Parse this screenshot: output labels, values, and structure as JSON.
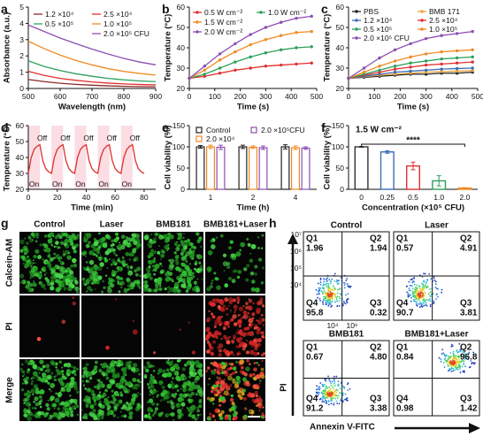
{
  "chart_data": [
    {
      "type": "line",
      "label": "a",
      "xlabel": "Wavelength (nm)",
      "ylabel": "Absorbance (a.u.)",
      "x": [
        500,
        550,
        600,
        650,
        700,
        750,
        800,
        850,
        900
      ],
      "xlim": [
        500,
        900
      ],
      "xticks": [
        500,
        600,
        700,
        800,
        900
      ],
      "ylim": [
        0,
        5
      ],
      "yticks": [
        0,
        1,
        2,
        3,
        4,
        5
      ],
      "markers": false,
      "series": [
        {
          "name": "1.2 ×10⁴",
          "color": "#8b2a2a",
          "values": [
            0.55,
            0.42,
            0.32,
            0.25,
            0.2,
            0.16,
            0.13,
            0.11,
            0.1
          ]
        },
        {
          "name": "2.5 ×10⁴",
          "color": "#e03030",
          "values": [
            1.05,
            0.8,
            0.62,
            0.5,
            0.4,
            0.33,
            0.28,
            0.24,
            0.22
          ]
        },
        {
          "name": "0.5 ×10⁵",
          "color": "#2ca05a",
          "values": [
            1.7,
            1.35,
            1.1,
            0.9,
            0.75,
            0.62,
            0.53,
            0.46,
            0.42
          ]
        },
        {
          "name": "1.0 ×10⁵",
          "color": "#f08a24",
          "values": [
            2.9,
            2.45,
            2.05,
            1.72,
            1.45,
            1.22,
            1.05,
            0.92,
            0.82
          ]
        },
        {
          "name": "2.0 ×10⁵ CFU",
          "color": "#8c4fb3",
          "values": [
            3.9,
            3.5,
            3.1,
            2.75,
            2.42,
            2.12,
            1.85,
            1.62,
            1.45
          ]
        }
      ]
    },
    {
      "type": "line",
      "label": "b",
      "xlabel": "Time (s)",
      "ylabel": "Temperature (°C)",
      "x": [
        0,
        60,
        120,
        180,
        240,
        300,
        360,
        420,
        480
      ],
      "xlim": [
        0,
        500
      ],
      "xticks": [
        0,
        100,
        200,
        300,
        400,
        500
      ],
      "ylim": [
        20,
        60
      ],
      "yticks": [
        20,
        30,
        40,
        50,
        60
      ],
      "markers": true,
      "series": [
        {
          "name": "0.5 W cm⁻²",
          "color": "#e03030",
          "values": [
            25,
            26,
            27.5,
            29,
            30,
            31,
            31.5,
            32,
            32.5
          ]
        },
        {
          "name": "1.0 W cm⁻²",
          "color": "#2ca05a",
          "values": [
            25,
            27,
            30,
            33,
            35.5,
            37.5,
            39,
            40,
            40.5
          ]
        },
        {
          "name": "1.5 W cm⁻²",
          "color": "#f08a24",
          "values": [
            25,
            29,
            34,
            38,
            41.5,
            44,
            46,
            47.5,
            48
          ]
        },
        {
          "name": "2.0 W cm⁻²",
          "color": "#8c4fb3",
          "values": [
            25,
            31,
            37,
            42,
            46.5,
            50,
            52.5,
            54.5,
            55.5
          ]
        }
      ]
    },
    {
      "type": "line",
      "label": "c",
      "xlabel": "Time (s)",
      "ylabel": "Temperature (°C)",
      "x": [
        0,
        60,
        120,
        180,
        240,
        300,
        360,
        420,
        480
      ],
      "xlim": [
        0,
        500
      ],
      "xticks": [
        0,
        100,
        200,
        300,
        400,
        500
      ],
      "ylim": [
        20,
        60
      ],
      "yticks": [
        20,
        30,
        40,
        50,
        60
      ],
      "markers": true,
      "series": [
        {
          "name": "PBS",
          "color": "#222222",
          "values": [
            25,
            25.5,
            26,
            26.5,
            27,
            27,
            27.5,
            27.5,
            28
          ]
        },
        {
          "name": "BMB 171",
          "color": "#e8a33d",
          "values": [
            25,
            25.8,
            26.5,
            27,
            27.5,
            28,
            28.3,
            28.5,
            28.8
          ]
        },
        {
          "name": "1.2 ×10⁴",
          "color": "#3b6fb6",
          "values": [
            25,
            26,
            27,
            28,
            28.5,
            29,
            29.5,
            29.8,
            30
          ]
        },
        {
          "name": "2.5 ×10⁴",
          "color": "#e03030",
          "values": [
            25,
            26.5,
            28,
            29.5,
            30.5,
            31.5,
            32,
            32.5,
            33
          ]
        },
        {
          "name": "0.5 ×10⁵",
          "color": "#2ca05a",
          "values": [
            25,
            27,
            29,
            31,
            32.5,
            33.5,
            34.5,
            35,
            35.5
          ]
        },
        {
          "name": "1.0 ×10⁵",
          "color": "#f08a24",
          "values": [
            25,
            28,
            31,
            33.5,
            35.5,
            37,
            38,
            38.5,
            39
          ]
        },
        {
          "name": "2.0 ×10⁵ CFU",
          "color": "#8c4fb3",
          "values": [
            25,
            30,
            35,
            39,
            42,
            44.5,
            46,
            47,
            48
          ]
        }
      ]
    },
    {
      "type": "line",
      "label": "d",
      "xlabel": "Time (min)",
      "ylabel": "Temperature (°C)",
      "x": [
        0,
        2,
        4,
        6,
        8,
        10,
        12,
        14,
        16,
        18,
        20,
        22,
        24,
        26,
        28,
        30,
        32,
        34,
        36,
        38,
        40,
        42,
        44,
        46,
        48,
        50,
        52,
        54,
        56,
        58,
        60,
        62,
        64,
        66,
        68,
        70,
        72,
        74,
        76,
        78,
        80
      ],
      "xlim": [
        0,
        88
      ],
      "xticks": [
        0,
        20,
        40,
        60,
        80
      ],
      "ylim": [
        20,
        60
      ],
      "yticks": [
        20,
        30,
        40,
        50,
        60
      ],
      "markers": false,
      "shaded": [
        [
          0,
          8
        ],
        [
          16,
          24
        ],
        [
          32,
          40
        ],
        [
          48,
          56
        ],
        [
          64,
          72
        ]
      ],
      "shaded_color": "#fbdde3",
      "on_label": "On",
      "off_label": "Off",
      "series": [
        {
          "color": "#e0302d",
          "values": [
            30,
            40,
            45,
            47,
            48,
            38,
            33,
            31,
            30,
            40,
            45,
            47,
            48,
            38,
            33,
            31,
            30,
            40,
            45,
            47,
            48,
            38,
            33,
            31,
            30,
            40,
            45,
            47,
            48,
            38,
            33,
            31,
            30,
            40,
            45,
            47,
            48,
            38,
            33,
            31,
            30
          ]
        }
      ]
    },
    {
      "type": "bar",
      "label": "e",
      "xlabel": "Time (h)",
      "ylabel": "Cell viability (%)",
      "categories": [
        "1",
        "2",
        "4"
      ],
      "ylim": [
        0,
        150
      ],
      "yticks": [
        0,
        50,
        100,
        150
      ],
      "series": [
        {
          "name": "Control",
          "color": "#222222",
          "values": [
            100,
            100,
            100
          ],
          "errors": [
            3,
            4,
            5
          ]
        },
        {
          "name": "2.0 ×10⁴",
          "color": "#f08a24",
          "values": [
            100,
            99,
            98
          ],
          "errors": [
            4,
            3,
            4
          ]
        },
        {
          "name": "2.0 ×10⁵CFU",
          "color": "#8c4fb3",
          "values": [
            99,
            98,
            97
          ],
          "errors": [
            5,
            4,
            3
          ]
        }
      ]
    },
    {
      "type": "bar",
      "label": "f",
      "xlabel": "Concentration (×10⁵ CFU)",
      "ylabel": "Cell viability (%)",
      "categories": [
        "0",
        "0.25",
        "0.5",
        "1.0",
        "2.0"
      ],
      "ylim": [
        0,
        150
      ],
      "yticks": [
        0,
        50,
        100,
        150
      ],
      "values": [
        100,
        88,
        55,
        20,
        3
      ],
      "errors": [
        1,
        3,
        9,
        12,
        1
      ],
      "colors": [
        "#333333",
        "#3b6fb6",
        "#e03030",
        "#2ca05a",
        "#f08a24"
      ],
      "condition": "1.5 W cm⁻²",
      "significance": "****"
    }
  ],
  "panel_g": {
    "label": "g",
    "columns": [
      "Control",
      "Laser",
      "BMB181",
      "BMB181+Laser"
    ],
    "rows": [
      {
        "name": "Calcein-AM",
        "color": "#3dbb3d"
      },
      {
        "name": "PI",
        "color": "#e03030"
      },
      {
        "name": "Merge",
        "color": "#222222"
      }
    ],
    "scale_bar": "50 μm"
  },
  "panel_h": {
    "label": "h",
    "quadrants": [
      "Q1",
      "Q2",
      "Q3",
      "Q4"
    ],
    "plots": [
      {
        "title": "Control",
        "values": [
          "1.96",
          "1.94",
          "0.32",
          "95.8"
        ]
      },
      {
        "title": "Laser",
        "values": [
          "0.57",
          "4.91",
          "3.81",
          "90.7"
        ]
      },
      {
        "title": "BMB181",
        "values": [
          "0.67",
          "4.80",
          "3.38",
          "91.2"
        ]
      },
      {
        "title": "BMB181+Laser",
        "values": [
          "0.84",
          "96.8",
          "1.42",
          "0.98"
        ]
      }
    ],
    "yticks": [
      "10⁷",
      "10⁶",
      "10⁵",
      "10⁴"
    ],
    "xticks": [
      "10⁴",
      "10⁶"
    ],
    "ylabel": "PI",
    "xlabel": "Annexin V-FITC",
    "ylabel_color": "#e03030",
    "xlabel_color": "#3dbb3d"
  }
}
